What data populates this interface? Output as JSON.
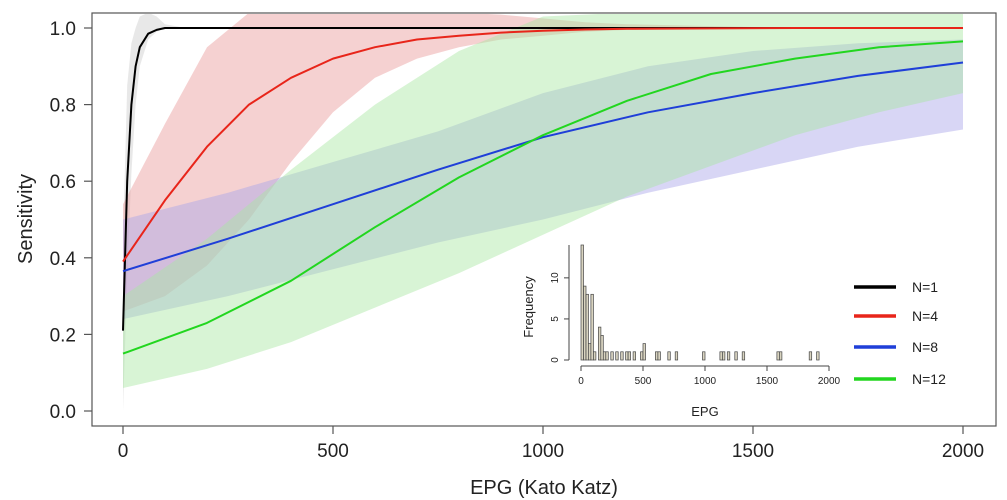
{
  "chart_data": [
    {
      "type": "line",
      "xlabel": "EPG (Kato Katz)",
      "ylabel": "Sensitivity",
      "xlim": [
        0,
        2000
      ],
      "ylim": [
        0,
        1.0
      ],
      "xticks": [
        "0",
        "500",
        "1000",
        "1500",
        "2000"
      ],
      "yticks": [
        "0.0",
        "0.2",
        "0.4",
        "0.6",
        "0.8",
        "1.0"
      ],
      "grid": false,
      "legend_position": "bottom-right",
      "series": [
        {
          "name": "N=1",
          "color": "#000000",
          "band_color": "#cccccc",
          "x": [
            0,
            10,
            20,
            30,
            40,
            60,
            80,
            100,
            150,
            2000
          ],
          "y": [
            0.21,
            0.6,
            0.8,
            0.9,
            0.95,
            0.985,
            0.995,
            1.0,
            1.0,
            1.0
          ],
          "lower": [
            0.0,
            0.35,
            0.62,
            0.8,
            0.9,
            0.97,
            0.99,
            1.0,
            1.0,
            1.0
          ],
          "upper": [
            0.45,
            0.85,
            0.96,
            1.0,
            1.03,
            1.04,
            1.03,
            1.01,
            1.0,
            1.0
          ]
        },
        {
          "name": "N=4",
          "color": "#e8251a",
          "band_color": "#e89a9a",
          "x": [
            0,
            100,
            200,
            300,
            400,
            500,
            600,
            700,
            800,
            900,
            1000,
            1100,
            1200,
            1400,
            1600,
            2000
          ],
          "y": [
            0.39,
            0.55,
            0.69,
            0.8,
            0.87,
            0.92,
            0.95,
            0.97,
            0.98,
            0.988,
            0.993,
            0.996,
            0.998,
            0.999,
            1.0,
            1.0
          ],
          "lower": [
            0.26,
            0.3,
            0.38,
            0.5,
            0.65,
            0.78,
            0.87,
            0.92,
            0.95,
            0.97,
            0.98,
            0.99,
            0.995,
            0.998,
            1.0,
            1.0
          ],
          "upper": [
            0.54,
            0.75,
            0.95,
            1.04,
            1.04,
            1.04,
            1.04,
            1.04,
            1.04,
            1.035,
            1.025,
            1.015,
            1.01,
            1.005,
            1.0,
            1.0
          ]
        },
        {
          "name": "N=8",
          "color": "#1f3fd8",
          "band_color": "#a9a3e8",
          "x": [
            0,
            250,
            500,
            750,
            1000,
            1250,
            1500,
            1750,
            2000
          ],
          "y": [
            0.365,
            0.45,
            0.54,
            0.63,
            0.715,
            0.78,
            0.83,
            0.875,
            0.91
          ],
          "lower": [
            0.24,
            0.3,
            0.37,
            0.44,
            0.5,
            0.57,
            0.63,
            0.69,
            0.735
          ],
          "upper": [
            0.5,
            0.57,
            0.65,
            0.73,
            0.83,
            0.9,
            0.94,
            0.96,
            0.97
          ]
        },
        {
          "name": "N=12",
          "color": "#22d61f",
          "band_color": "#a9e6a1",
          "x": [
            0,
            200,
            400,
            600,
            800,
            1000,
            1200,
            1400,
            1600,
            1800,
            2000
          ],
          "y": [
            0.15,
            0.23,
            0.34,
            0.48,
            0.61,
            0.72,
            0.81,
            0.88,
            0.92,
            0.95,
            0.965
          ],
          "lower": [
            0.06,
            0.11,
            0.18,
            0.27,
            0.36,
            0.46,
            0.56,
            0.64,
            0.72,
            0.78,
            0.83
          ],
          "upper": [
            0.3,
            0.45,
            0.63,
            0.8,
            0.94,
            1.03,
            1.04,
            1.04,
            1.04,
            1.04,
            1.04
          ]
        }
      ]
    },
    {
      "type": "bar",
      "xlabel": "EPG",
      "ylabel": "Frequency",
      "xlim": [
        0,
        2000
      ],
      "ylim": [
        0,
        14
      ],
      "xticks": [
        "0",
        "500",
        "1000",
        "1500",
        "2000"
      ],
      "yticks": [
        "0",
        "5",
        "10"
      ],
      "bin_width": 20,
      "bar_color": "#d9d4c0",
      "bins": [
        {
          "x": 0,
          "count": 14
        },
        {
          "x": 20,
          "count": 9
        },
        {
          "x": 40,
          "count": 8
        },
        {
          "x": 60,
          "count": 2
        },
        {
          "x": 80,
          "count": 8
        },
        {
          "x": 100,
          "count": 1
        },
        {
          "x": 140,
          "count": 4
        },
        {
          "x": 160,
          "count": 3
        },
        {
          "x": 180,
          "count": 1
        },
        {
          "x": 200,
          "count": 1
        },
        {
          "x": 240,
          "count": 1
        },
        {
          "x": 280,
          "count": 1
        },
        {
          "x": 320,
          "count": 1
        },
        {
          "x": 360,
          "count": 1
        },
        {
          "x": 380,
          "count": 1
        },
        {
          "x": 420,
          "count": 1
        },
        {
          "x": 480,
          "count": 1
        },
        {
          "x": 500,
          "count": 2
        },
        {
          "x": 600,
          "count": 1
        },
        {
          "x": 620,
          "count": 1
        },
        {
          "x": 700,
          "count": 1
        },
        {
          "x": 760,
          "count": 1
        },
        {
          "x": 980,
          "count": 1
        },
        {
          "x": 1120,
          "count": 1
        },
        {
          "x": 1140,
          "count": 1
        },
        {
          "x": 1180,
          "count": 1
        },
        {
          "x": 1240,
          "count": 1
        },
        {
          "x": 1300,
          "count": 1
        },
        {
          "x": 1580,
          "count": 1
        },
        {
          "x": 1600,
          "count": 1
        },
        {
          "x": 1840,
          "count": 1
        },
        {
          "x": 1900,
          "count": 1
        }
      ]
    }
  ]
}
